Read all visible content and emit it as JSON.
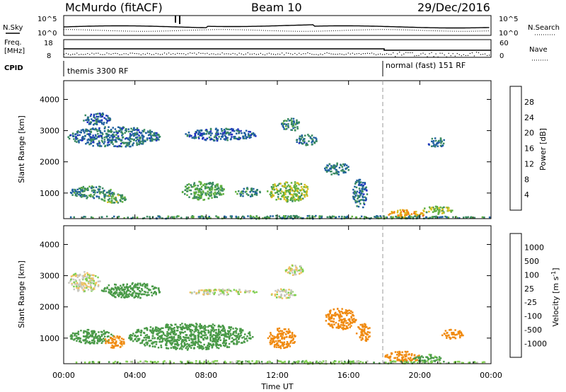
{
  "header": {
    "station": "McMurdo (fitACF)",
    "beam": "Beam 10",
    "date": "29/Dec/2016"
  },
  "summary_panel": {
    "nsky_label": "N.Sky",
    "nsky_top": "10^5",
    "nsky_bottom": "10^0",
    "nsearch_label": "N.Search",
    "nsearch_top": "10^5",
    "nsearch_bottom": "10^0",
    "freq_label": "Freq.",
    "freq_unit": "[MHz]",
    "freq_top": "18",
    "freq_bottom": "8",
    "nave_label": "Nave",
    "nave_top": "60",
    "nave_bottom": "0",
    "cpid_label": "CPID",
    "cpid_segments": [
      {
        "label": "themis 3300 RF",
        "start_hour": 0,
        "end_hour": 18
      },
      {
        "label": "normal (fast) 151 RF",
        "start_hour": 18,
        "end_hour": 24
      }
    ]
  },
  "colors": {
    "power_scale": [
      "#2030c0",
      "#2060a0",
      "#3a8a60",
      "#60b040",
      "#d8c020",
      "#f08a10",
      "#e05010",
      "#d01010"
    ],
    "velocity_scale": [
      "#e01010",
      "#f05010",
      "#f08a10",
      "#f0c060",
      "#c8c8c0",
      "#80d050",
      "#4a9a48",
      "#3a6aa8",
      "#2030c0"
    ]
  },
  "chart_data": [
    {
      "type": "heatmap",
      "panel": "power",
      "xlabel": "",
      "ylabel": "Slant Range [km]",
      "x_ticks": [
        "00:00",
        "04:00",
        "08:00",
        "12:00",
        "16:00",
        "20:00",
        "00:00"
      ],
      "y_ticks": [
        "1000",
        "2000",
        "3000",
        "4000"
      ],
      "xlim": [
        0,
        24
      ],
      "ylim": [
        180,
        4600
      ],
      "colorbar_label": "Power [dB]",
      "colorbar_ticks": [
        "4",
        "8",
        "12",
        "16",
        "20",
        "24",
        "28"
      ],
      "colorbar_range": [
        0,
        30
      ],
      "regions": [
        {
          "x": [
            0.2,
            5.4
          ],
          "y": [
            2500,
            3150
          ],
          "value": 7
        },
        {
          "x": [
            1.0,
            2.6
          ],
          "y": [
            3200,
            3600
          ],
          "value": 6
        },
        {
          "x": [
            6.8,
            10.8
          ],
          "y": [
            2700,
            3100
          ],
          "value": 6
        },
        {
          "x": [
            12.2,
            13.2
          ],
          "y": [
            3000,
            3450
          ],
          "value": 9
        },
        {
          "x": [
            13.0,
            14.2
          ],
          "y": [
            2550,
            2900
          ],
          "value": 7
        },
        {
          "x": [
            0.3,
            2.8
          ],
          "y": [
            850,
            1250
          ],
          "value": 9
        },
        {
          "x": [
            2.0,
            3.5
          ],
          "y": [
            700,
            1000
          ],
          "value": 13
        },
        {
          "x": [
            6.6,
            9.0
          ],
          "y": [
            800,
            1400
          ],
          "value": 12
        },
        {
          "x": [
            9.6,
            11.0
          ],
          "y": [
            900,
            1200
          ],
          "value": 10
        },
        {
          "x": [
            11.4,
            13.8
          ],
          "y": [
            750,
            1400
          ],
          "value": 15
        },
        {
          "x": [
            14.6,
            16.0
          ],
          "y": [
            1600,
            2000
          ],
          "value": 8
        },
        {
          "x": [
            16.2,
            17.0
          ],
          "y": [
            500,
            1500
          ],
          "value": 7
        },
        {
          "x": [
            18.2,
            20.2
          ],
          "y": [
            200,
            500
          ],
          "value": 21
        },
        {
          "x": [
            20.0,
            21.8
          ],
          "y": [
            350,
            600
          ],
          "value": 15
        },
        {
          "x": [
            20.4,
            21.4
          ],
          "y": [
            2500,
            2800
          ],
          "value": 7
        },
        {
          "x": [
            0.0,
            24.0
          ],
          "y": [
            200,
            300
          ],
          "value": 10
        }
      ]
    },
    {
      "type": "heatmap",
      "panel": "velocity",
      "xlabel": "Time UT",
      "ylabel": "Slant Range [km]",
      "x_ticks": [
        "00:00",
        "04:00",
        "08:00",
        "12:00",
        "16:00",
        "20:00",
        "00:00"
      ],
      "y_ticks": [
        "1000",
        "2000",
        "3000",
        "4000"
      ],
      "xlim": [
        0,
        24
      ],
      "ylim": [
        180,
        4600
      ],
      "colorbar_label": "Velocity [m s^-1]",
      "colorbar_ticks": [
        "-1000",
        "-500",
        "-100",
        "-25",
        "25",
        "100",
        "500",
        "1000"
      ],
      "regions": [
        {
          "x": [
            0.2,
            2.0
          ],
          "y": [
            2500,
            3150
          ],
          "value": 0
        },
        {
          "x": [
            2.0,
            5.4
          ],
          "y": [
            2300,
            2800
          ],
          "value": 200
        },
        {
          "x": [
            6.8,
            10.8
          ],
          "y": [
            2400,
            2600
          ],
          "value": 0
        },
        {
          "x": [
            11.6,
            13.0
          ],
          "y": [
            2300,
            2600
          ],
          "value": 0
        },
        {
          "x": [
            12.4,
            13.4
          ],
          "y": [
            3000,
            3400
          ],
          "value": 0
        },
        {
          "x": [
            0.3,
            2.8
          ],
          "y": [
            850,
            1300
          ],
          "value": 300
        },
        {
          "x": [
            2.2,
            3.4
          ],
          "y": [
            700,
            1100
          ],
          "value": -150
        },
        {
          "x": [
            3.6,
            10.6
          ],
          "y": [
            650,
            1500
          ],
          "value": 350
        },
        {
          "x": [
            11.4,
            13.0
          ],
          "y": [
            700,
            1350
          ],
          "value": -300
        },
        {
          "x": [
            14.6,
            16.4
          ],
          "y": [
            1300,
            2000
          ],
          "value": -350
        },
        {
          "x": [
            16.4,
            17.2
          ],
          "y": [
            900,
            1500
          ],
          "value": -300
        },
        {
          "x": [
            18.0,
            20.0
          ],
          "y": [
            250,
            600
          ],
          "value": -300
        },
        {
          "x": [
            19.6,
            21.2
          ],
          "y": [
            250,
            500
          ],
          "value": 150
        },
        {
          "x": [
            21.2,
            22.4
          ],
          "y": [
            1000,
            1300
          ],
          "value": -300
        },
        {
          "x": [
            0.0,
            24.0
          ],
          "y": [
            200,
            300
          ],
          "value": 60
        }
      ]
    }
  ]
}
